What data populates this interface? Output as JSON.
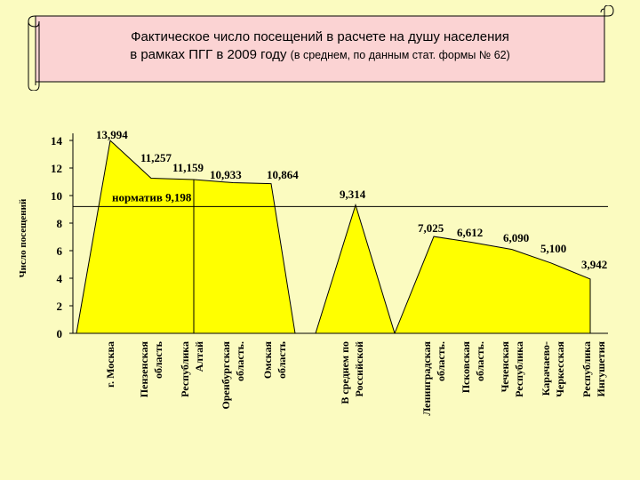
{
  "title": {
    "line1": "Фактическое число посещений в расчете на душу населения",
    "line2_main": "в рамках ПГГ в 2009 году",
    "line2_note": "(в среднем, по данным стат. формы № 62)"
  },
  "colors": {
    "background": "#fbfbc0",
    "banner_fill": "#fbd3d3",
    "area_fill": "#ffff00",
    "line": "#000000"
  },
  "chart_data": {
    "type": "area",
    "ylabel": "Число посещений",
    "ylim": [
      0,
      14
    ],
    "yticks": [
      "0",
      "2",
      "4",
      "6",
      "8",
      "10",
      "12",
      "14"
    ],
    "reference_line": {
      "label": "норматив 9,198",
      "value": 9.198
    },
    "groups": [
      {
        "categories": [
          "г. Москва",
          "Пензенская область",
          "Республика Алтай",
          "Оренбургская область",
          "Омская область"
        ],
        "values": [
          13.994,
          11.257,
          11.159,
          10.933,
          10.864
        ],
        "value_labels": [
          "13,994",
          "11,257",
          "11,159",
          "10,933",
          "10,864"
        ]
      },
      {
        "categories": [
          "В среднем по Российской"
        ],
        "values": [
          9.314
        ],
        "value_labels": [
          "9,314"
        ]
      },
      {
        "categories": [
          "Ленинградская область",
          "Псковская область",
          "Чеченская Республика",
          "Карачаево-Черкесская",
          "Республика Ингушетия"
        ],
        "values": [
          7.025,
          6.612,
          6.09,
          5.1,
          3.942
        ],
        "value_labels": [
          "7,025",
          "6,612",
          "6,090",
          "5,100",
          "3,942"
        ]
      }
    ],
    "category_label_lines": [
      [
        "г. Москва"
      ],
      [
        "Пензенская",
        "область"
      ],
      [
        "Республика",
        "Алтай"
      ],
      [
        "Оренбургская",
        "область."
      ],
      [
        "Омская",
        "область"
      ],
      [
        "В среднем по",
        "Российской"
      ],
      [
        "Ленинградская",
        "область."
      ],
      [
        "Псковская",
        "область."
      ],
      [
        "Чеченская",
        "Республика"
      ],
      [
        "Карачаево-",
        "Черкесская"
      ],
      [
        "Республика",
        "Ингушетия"
      ]
    ]
  }
}
